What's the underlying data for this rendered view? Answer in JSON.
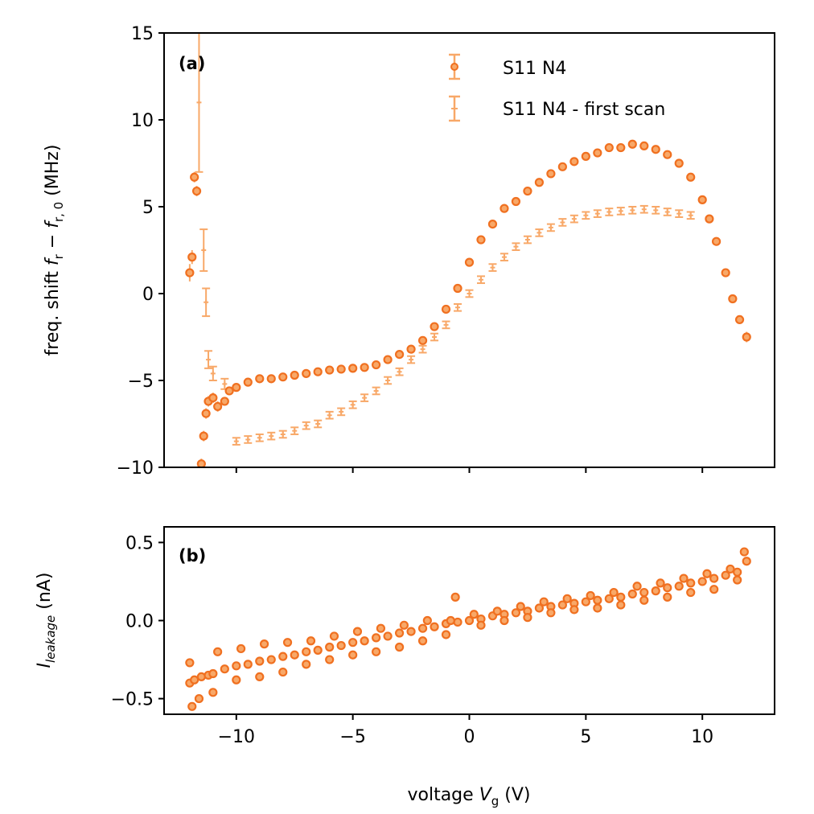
{
  "colors": {
    "main": "#f07020",
    "first_scan": "#f8a868"
  },
  "chart_data": [
    {
      "type": "scatter",
      "panel_label": "(a)",
      "ylabel_prefix": "freq. shift ",
      "ylabel_f": "f",
      "ylabel_r": "r",
      "ylabel_minus": " − ",
      "ylabel_f0": "f",
      "ylabel_r0": "r, 0",
      "ylabel_suffix": " (MHz)",
      "xlim": [
        -13.1,
        13.1
      ],
      "ylim": [
        -10,
        15
      ],
      "yticks": [
        15,
        10,
        5,
        0,
        -5,
        -10
      ],
      "ytick_labels": [
        "15",
        "10",
        "5",
        "0",
        "−5",
        "−10"
      ],
      "xticks": [
        -10,
        -5,
        0,
        5,
        10
      ],
      "legend": [
        "S11 N4",
        "S11 N4 - first scan"
      ],
      "legend_position": "top-right",
      "series": [
        {
          "name": "S11 N4",
          "marker": "circle",
          "x": [
            -12.0,
            -11.9,
            -11.8,
            -11.7,
            -11.5,
            -11.4,
            -11.3,
            -11.2,
            -11.0,
            -10.8,
            -10.5,
            -10.3,
            -10.0,
            -9.5,
            -9.0,
            -8.5,
            -8.0,
            -7.5,
            -7.0,
            -6.5,
            -6.0,
            -5.5,
            -5.0,
            -4.5,
            -4.0,
            -3.5,
            -3.0,
            -2.5,
            -2.0,
            -1.5,
            -1.0,
            -0.5,
            0.0,
            0.5,
            1.0,
            1.5,
            2.0,
            2.5,
            3.0,
            3.5,
            4.0,
            4.5,
            5.0,
            5.5,
            6.0,
            6.5,
            7.0,
            7.5,
            8.0,
            8.5,
            9.0,
            9.5,
            10.0,
            10.3,
            10.6,
            11.0,
            11.3,
            11.6,
            11.9
          ],
          "y": [
            1.2,
            2.1,
            6.7,
            5.9,
            -9.8,
            -8.2,
            -6.9,
            -6.2,
            -6.0,
            -6.5,
            -6.2,
            -5.6,
            -5.4,
            -5.1,
            -4.9,
            -4.9,
            -4.8,
            -4.7,
            -4.6,
            -4.5,
            -4.4,
            -4.35,
            -4.3,
            -4.25,
            -4.1,
            -3.8,
            -3.5,
            -3.2,
            -2.7,
            -1.9,
            -0.9,
            0.3,
            1.8,
            3.1,
            4.0,
            4.9,
            5.3,
            5.9,
            6.4,
            6.9,
            7.3,
            7.6,
            7.9,
            8.1,
            8.4,
            8.4,
            8.6,
            8.5,
            8.3,
            8.0,
            7.5,
            6.7,
            5.4,
            4.3,
            3.0,
            1.2,
            -0.3,
            -1.5,
            -2.5
          ],
          "yerr": [
            0.5,
            0.4,
            0.3,
            0.3,
            0.3,
            0.3,
            0.3,
            0.3,
            0.3,
            0.3,
            0.2,
            0.2,
            0.15,
            0.1,
            0.1,
            0.1,
            0.1,
            0.1,
            0.1,
            0.1,
            0.1,
            0.1,
            0.1,
            0.1,
            0.1,
            0.1,
            0.1,
            0.1,
            0.1,
            0.15,
            0.15,
            0.15,
            0.15,
            0.15,
            0.15,
            0.15,
            0.15,
            0.15,
            0.15,
            0.15,
            0.15,
            0.15,
            0.15,
            0.15,
            0.15,
            0.15,
            0.15,
            0.15,
            0.15,
            0.15,
            0.15,
            0.15,
            0.2,
            0.2,
            0.2,
            0.2,
            0.2,
            0.2,
            0.3
          ]
        },
        {
          "name": "S11 N4 - first scan",
          "marker": "cross",
          "x": [
            -11.6,
            -11.4,
            -11.3,
            -11.2,
            -11.0,
            -10.5,
            -10.0,
            -9.5,
            -9.0,
            -8.5,
            -8.0,
            -7.5,
            -7.0,
            -6.5,
            -6.0,
            -5.5,
            -5.0,
            -4.5,
            -4.0,
            -3.5,
            -3.0,
            -2.5,
            -2.0,
            -1.5,
            -1.0,
            -0.5,
            0.0,
            0.5,
            1.0,
            1.5,
            2.0,
            2.5,
            3.0,
            3.5,
            4.0,
            4.5,
            5.0,
            5.5,
            6.0,
            6.5,
            7.0,
            7.5,
            8.0,
            8.5,
            9.0,
            9.5
          ],
          "y": [
            11.0,
            2.5,
            -0.5,
            -3.8,
            -4.6,
            -5.2,
            -8.5,
            -8.4,
            -8.3,
            -8.2,
            -8.1,
            -7.9,
            -7.6,
            -7.5,
            -7.0,
            -6.8,
            -6.4,
            -6.0,
            -5.6,
            -5.0,
            -4.5,
            -3.8,
            -3.2,
            -2.5,
            -1.8,
            -0.8,
            0.0,
            0.8,
            1.5,
            2.1,
            2.7,
            3.1,
            3.5,
            3.8,
            4.1,
            4.3,
            4.5,
            4.6,
            4.7,
            4.75,
            4.8,
            4.85,
            4.8,
            4.7,
            4.6,
            4.5
          ],
          "yerr": [
            4.0,
            1.2,
            0.8,
            0.5,
            0.4,
            0.3,
            0.2,
            0.2,
            0.2,
            0.2,
            0.2,
            0.2,
            0.2,
            0.2,
            0.2,
            0.2,
            0.2,
            0.2,
            0.2,
            0.2,
            0.2,
            0.2,
            0.2,
            0.2,
            0.2,
            0.2,
            0.2,
            0.2,
            0.2,
            0.2,
            0.2,
            0.2,
            0.2,
            0.2,
            0.2,
            0.2,
            0.2,
            0.2,
            0.2,
            0.2,
            0.2,
            0.2,
            0.2,
            0.2,
            0.2,
            0.2
          ]
        }
      ]
    },
    {
      "type": "scatter",
      "panel_label": "(b)",
      "ylabel_I": "I",
      "ylabel_sub": "leakage",
      "ylabel_suffix": " (nA)",
      "xlabel_prefix": "voltage ",
      "xlabel_V": "V",
      "xlabel_sub": "g",
      "xlabel_suffix": " (V)",
      "xlim": [
        -13.1,
        13.1
      ],
      "ylim": [
        -0.6,
        0.6
      ],
      "yticks": [
        0.5,
        0.0,
        -0.5
      ],
      "ytick_labels": [
        "0.5",
        "0.0",
        "−0.5"
      ],
      "xticks": [
        -10,
        -5,
        0,
        5,
        10
      ],
      "xtick_labels": [
        "−10",
        "−5",
        "0",
        "5",
        "10"
      ],
      "series": [
        {
          "name": "I_leakage",
          "marker": "circle",
          "x": [
            -12.0,
            -11.8,
            -11.5,
            -11.2,
            -11.0,
            -10.5,
            -10.0,
            -9.5,
            -9.0,
            -8.5,
            -8.0,
            -7.5,
            -7.0,
            -6.5,
            -6.0,
            -5.5,
            -5.0,
            -4.5,
            -4.0,
            -3.5,
            -3.0,
            -2.5,
            -2.0,
            -1.5,
            -1.0,
            -0.5,
            0.0,
            0.5,
            1.0,
            1.5,
            2.0,
            2.5,
            3.0,
            3.5,
            4.0,
            4.5,
            5.0,
            5.5,
            6.0,
            6.5,
            7.0,
            7.5,
            8.0,
            8.5,
            9.0,
            9.5,
            10.0,
            10.5,
            11.0,
            11.5,
            11.9,
            -12.0,
            -11.6,
            -11.0,
            -10.0,
            -9.0,
            -8.0,
            -7.0,
            -6.0,
            -5.0,
            -4.0,
            -3.0,
            -2.0,
            -1.0,
            -0.6,
            0.5,
            1.5,
            2.5,
            3.5,
            4.5,
            5.5,
            6.5,
            7.5,
            8.5,
            9.5,
            10.5,
            11.5,
            -11.9,
            -10.8,
            -9.8,
            -8.8,
            -7.8,
            -6.8,
            -5.8,
            -4.8,
            -3.8,
            -2.8,
            -1.8,
            -0.8,
            0.2,
            1.2,
            2.2,
            3.2,
            4.2,
            5.2,
            6.2,
            7.2,
            8.2,
            9.2,
            10.2,
            11.2,
            11.8
          ],
          "y": [
            -0.4,
            -0.38,
            -0.36,
            -0.35,
            -0.34,
            -0.31,
            -0.29,
            -0.28,
            -0.26,
            -0.25,
            -0.23,
            -0.22,
            -0.2,
            -0.19,
            -0.17,
            -0.16,
            -0.14,
            -0.13,
            -0.11,
            -0.1,
            -0.08,
            -0.07,
            -0.05,
            -0.04,
            -0.02,
            -0.01,
            0.0,
            0.01,
            0.03,
            0.04,
            0.05,
            0.06,
            0.08,
            0.09,
            0.1,
            0.11,
            0.12,
            0.13,
            0.14,
            0.15,
            0.17,
            0.18,
            0.19,
            0.21,
            0.22,
            0.24,
            0.25,
            0.27,
            0.29,
            0.31,
            0.38,
            -0.27,
            -0.5,
            -0.46,
            -0.38,
            -0.36,
            -0.33,
            -0.28,
            -0.25,
            -0.22,
            -0.2,
            -0.17,
            -0.13,
            -0.09,
            0.15,
            -0.03,
            0.0,
            0.02,
            0.05,
            0.07,
            0.08,
            0.1,
            0.13,
            0.15,
            0.18,
            0.2,
            0.26,
            -0.55,
            -0.2,
            -0.18,
            -0.15,
            -0.14,
            -0.13,
            -0.1,
            -0.07,
            -0.05,
            -0.03,
            -0.0,
            0.0,
            0.04,
            0.06,
            0.09,
            0.12,
            0.14,
            0.16,
            0.18,
            0.22,
            0.24,
            0.27,
            0.3,
            0.33,
            0.44
          ]
        }
      ]
    }
  ]
}
